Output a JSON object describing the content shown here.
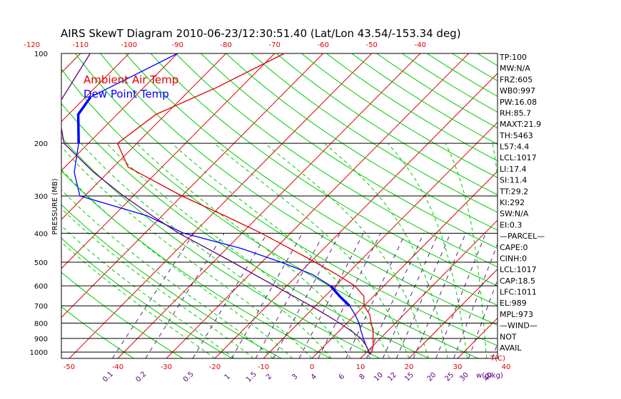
{
  "chart_data": {
    "type": "line",
    "title": "AIRS SkewT Diagram 2010-06-23/12:30:51.40 (Lat/Lon 43.54/-153.34 deg)",
    "ylabel": "PRESSURE (MB)",
    "y_scale": "log",
    "ylim": [
      1050,
      100
    ],
    "x_bottom_label": "T(C)",
    "x_bottom_ticks": [
      "-50",
      "-40",
      "-30",
      "-20",
      "-10",
      "0",
      "10",
      "20",
      "30",
      "40"
    ],
    "x_top_ticks": [
      "-120",
      "-110",
      "-100",
      "-90",
      "-80",
      "-70",
      "-60",
      "-50",
      "-40"
    ],
    "pressure_ticks": [
      "100",
      "200",
      "300",
      "400",
      "500",
      "600",
      "700",
      "800",
      "900",
      "1000"
    ],
    "mixing_ratio_label": "w(g/kg)",
    "mixing_ratio_ticks": [
      "0.1",
      "0.2",
      "0.5",
      "1",
      "1.5",
      "2",
      "3",
      "4",
      "6",
      "8",
      "10",
      "12",
      "15",
      "20",
      "25",
      "30",
      "40"
    ],
    "legend": [
      {
        "label": "Ambient Air Temp",
        "color": "#e00000"
      },
      {
        "label": "Dew Point Temp",
        "color": "#0000ff"
      }
    ],
    "series": [
      {
        "name": "Ambient Air Temp",
        "color": "#e00000",
        "points": [
          {
            "p": 100,
            "t": -68
          },
          {
            "p": 130,
            "t": -75
          },
          {
            "p": 160,
            "t": -82
          },
          {
            "p": 200,
            "t": -84
          },
          {
            "p": 240,
            "t": -77
          },
          {
            "p": 300,
            "t": -60
          },
          {
            "p": 350,
            "t": -47
          },
          {
            "p": 400,
            "t": -36
          },
          {
            "p": 450,
            "t": -27
          },
          {
            "p": 500,
            "t": -19
          },
          {
            "p": 550,
            "t": -12
          },
          {
            "p": 600,
            "t": -6
          },
          {
            "p": 650,
            "t": -2
          },
          {
            "p": 700,
            "t": 0
          },
          {
            "p": 750,
            "t": 3
          },
          {
            "p": 800,
            "t": 5
          },
          {
            "p": 850,
            "t": 7
          },
          {
            "p": 900,
            "t": 8.5
          },
          {
            "p": 950,
            "t": 10
          },
          {
            "p": 1000,
            "t": 11
          },
          {
            "p": 1017,
            "t": 11.2
          }
        ]
      },
      {
        "name": "Dew Point Temp",
        "color": "#0000ff",
        "points": [
          {
            "p": 100,
            "t": -90
          },
          {
            "p": 140,
            "t": -99
          },
          {
            "p": 160,
            "t": -98
          },
          {
            "p": 200,
            "t": -92
          },
          {
            "p": 250,
            "t": -87
          },
          {
            "p": 300,
            "t": -81
          },
          {
            "p": 350,
            "t": -63
          },
          {
            "p": 400,
            "t": -52
          },
          {
            "p": 450,
            "t": -37
          },
          {
            "p": 500,
            "t": -26
          },
          {
            "p": 550,
            "t": -17
          },
          {
            "p": 600,
            "t": -11
          },
          {
            "p": 650,
            "t": -7
          },
          {
            "p": 700,
            "t": -3
          },
          {
            "p": 750,
            "t": 0
          },
          {
            "p": 800,
            "t": 2.5
          },
          {
            "p": 850,
            "t": 4.5
          },
          {
            "p": 900,
            "t": 6.5
          },
          {
            "p": 950,
            "t": 8.5
          },
          {
            "p": 1000,
            "t": 10.5
          },
          {
            "p": 1017,
            "t": 11
          }
        ],
        "bold_segments": [
          [
            140,
            200
          ],
          [
            600,
            700
          ]
        ]
      },
      {
        "name": "Parcel",
        "color": "#5a007a",
        "points": [
          {
            "p": 100,
            "t": -108
          },
          {
            "p": 150,
            "t": -104
          },
          {
            "p": 200,
            "t": -95
          },
          {
            "p": 250,
            "t": -83
          },
          {
            "p": 300,
            "t": -72
          },
          {
            "p": 350,
            "t": -62
          },
          {
            "p": 400,
            "t": -53
          },
          {
            "p": 450,
            "t": -44
          },
          {
            "p": 500,
            "t": -36
          },
          {
            "p": 550,
            "t": -29
          },
          {
            "p": 600,
            "t": -22.5
          },
          {
            "p": 650,
            "t": -16.5
          },
          {
            "p": 700,
            "t": -11
          },
          {
            "p": 750,
            "t": -6
          },
          {
            "p": 800,
            "t": -1.5
          },
          {
            "p": 850,
            "t": 2.5
          },
          {
            "p": 900,
            "t": 6
          },
          {
            "p": 950,
            "t": 8.5
          },
          {
            "p": 1000,
            "t": 10.5
          },
          {
            "p": 1017,
            "t": 11.2
          }
        ]
      }
    ]
  },
  "side_panel": [
    "TP:100",
    "MW:N/A",
    "FRZ:605",
    "WB0:997",
    "PW:16.08",
    "RH:85.7",
    "MAXT:21.9",
    "TH:5463",
    "L57:4.4",
    "LCL:1017",
    "LI:17.4",
    "SI:11.4",
    "TT:29.2",
    "KI:292",
    "SW:N/A",
    "EI:0.3",
    "—PARCEL—",
    "CAPE:0",
    "CINH:0",
    "LCL:1017",
    "CAP:18.5",
    "LFC:1011",
    "EL:989",
    "MPL:973",
    "—WIND—",
    "NOT",
    "AVAIL"
  ],
  "colors": {
    "isotherm": "#e00000",
    "dry_adiabat": "#00cc00",
    "moist_adiabat": "#00cc00",
    "mixing_ratio": "#5a2080",
    "tick_text_temp": "#e00000",
    "tick_text_mixing": "#5a007a",
    "axis": "#000000"
  }
}
